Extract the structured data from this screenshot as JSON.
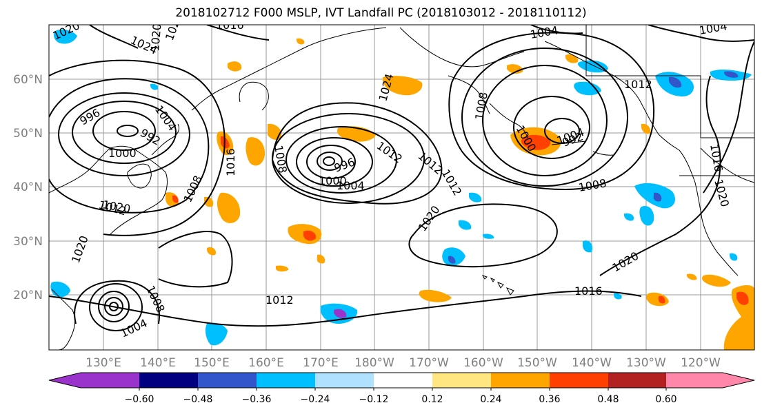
{
  "title": "2018102712 F000 MSLP, IVT Landfall PC (2018103012 - 2018110112)",
  "lat_labels": [
    "20°N",
    "30°N",
    "40°N",
    "50°N",
    "60°N"
  ],
  "lon_labels": [
    "130°E",
    "140°E",
    "150°E",
    "160°E",
    "170°E",
    "180°W",
    "170°W",
    "160°W",
    "150°W",
    "140°W",
    "130°W",
    "120°W"
  ],
  "colorbar": {
    "ticks": [
      "−0.60",
      "−0.48",
      "−0.36",
      "−0.24",
      "−0.12",
      "0.12",
      "0.24",
      "0.36",
      "0.48",
      "0.60"
    ],
    "colors": [
      "#9933cc",
      "#000080",
      "#3355cc",
      "#00bfff",
      "#b0e2ff",
      "#ffffff",
      "#ffe680",
      "#ffa500",
      "#ff4000",
      "#b22222",
      "#ff88aa"
    ]
  },
  "isobar_labels": [
    {
      "text": "1020"
    },
    {
      "text": "1016"
    },
    {
      "text": "1024"
    },
    {
      "text": "1020"
    },
    {
      "text": "996"
    },
    {
      "text": "1004"
    },
    {
      "text": "992"
    },
    {
      "text": "1000"
    },
    {
      "text": "1008"
    },
    {
      "text": "1012"
    },
    {
      "text": "1020"
    },
    {
      "text": "1016"
    },
    {
      "text": "1008"
    },
    {
      "text": "1004"
    },
    {
      "text": "1012"
    },
    {
      "text": "1016"
    },
    {
      "text": "1008"
    },
    {
      "text": "996"
    },
    {
      "text": "1000"
    },
    {
      "text": "1004"
    },
    {
      "text": "1012"
    },
    {
      "text": "1024"
    },
    {
      "text": "1020"
    },
    {
      "text": "1012"
    },
    {
      "text": "1004"
    },
    {
      "text": "1008"
    },
    {
      "text": "1000"
    },
    {
      "text": "1008"
    },
    {
      "text": "1004"
    },
    {
      "text": "1012"
    },
    {
      "text": "1020"
    },
    {
      "text": "1016"
    },
    {
      "text": "1020"
    },
    {
      "text": "1020"
    },
    {
      "text": "1004"
    },
    {
      "text": "992"
    },
    {
      "text": "1012"
    },
    {
      "text": "1020"
    }
  ]
}
